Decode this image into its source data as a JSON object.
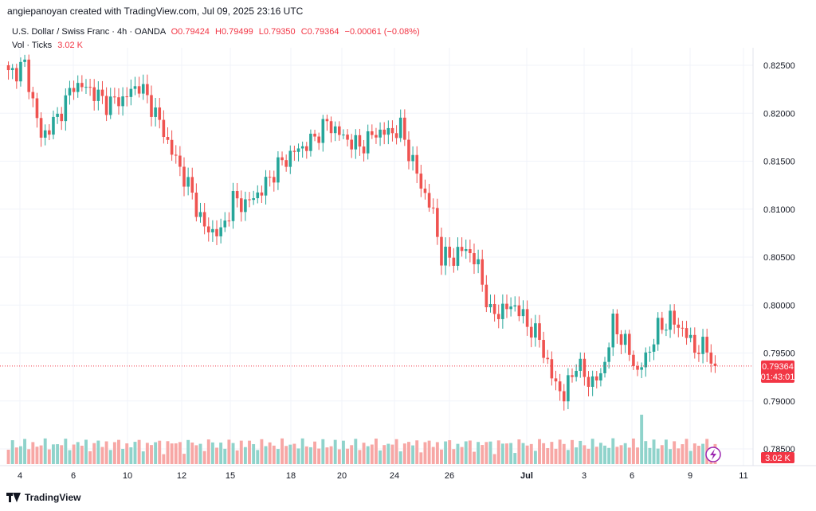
{
  "header": {
    "created_by": "angiepanoyan created with TradingView.com, Jul 09, 2025 23:16 UTC"
  },
  "legend": {
    "symbol": "U.S. Dollar / Swiss Franc · 4h · OANDA",
    "open": "O0.79424",
    "high": "H0.79499",
    "low": "L0.79350",
    "close": "C0.79364",
    "change": "−0.00061 (−0.08%)",
    "vol_label": "Vol · Ticks",
    "vol_value": "3.02 K"
  },
  "price_label": {
    "value": "0.79364",
    "countdown": "01:43:01"
  },
  "volume_label": "3.02 K",
  "footer": {
    "brand": "TradingView"
  },
  "colors": {
    "up": "#26a69a",
    "down": "#ef5350",
    "up_vol": "#8fd3cb",
    "down_vol": "#f7a7a5",
    "last_price": "#f23645"
  },
  "chart_data": {
    "type": "candlestick",
    "y_axis": {
      "min": 0.785,
      "max": 0.825,
      "ticks": [
        "0.82500",
        "0.82000",
        "0.81500",
        "0.81000",
        "0.80500",
        "0.80000",
        "0.79500",
        "0.79000",
        "0.78500"
      ]
    },
    "x_axis": {
      "ticks": [
        "4",
        "6",
        "10",
        "12",
        "15",
        "18",
        "20",
        "24",
        "26",
        "Jul",
        "3",
        "6",
        "9",
        "11"
      ]
    },
    "grid": true,
    "last_price": 0.79364,
    "anchors": [
      [
        0,
        0.824
      ],
      [
        4,
        0.825
      ],
      [
        8,
        0.8175
      ],
      [
        12,
        0.8195
      ],
      [
        16,
        0.823
      ],
      [
        20,
        0.8225
      ],
      [
        24,
        0.821
      ],
      [
        28,
        0.8215
      ],
      [
        32,
        0.823
      ],
      [
        36,
        0.82
      ],
      [
        40,
        0.816
      ],
      [
        44,
        0.8125
      ],
      [
        48,
        0.808
      ],
      [
        52,
        0.8075
      ],
      [
        55,
        0.811
      ],
      [
        58,
        0.8105
      ],
      [
        62,
        0.812
      ],
      [
        66,
        0.8145
      ],
      [
        70,
        0.816
      ],
      [
        74,
        0.817
      ],
      [
        78,
        0.819
      ],
      [
        82,
        0.8175
      ],
      [
        86,
        0.8165
      ],
      [
        90,
        0.818
      ],
      [
        94,
        0.818
      ],
      [
        96,
        0.8185
      ],
      [
        98,
        0.816
      ],
      [
        101,
        0.8125
      ],
      [
        104,
        0.8095
      ],
      [
        106,
        0.805
      ],
      [
        109,
        0.805
      ],
      [
        112,
        0.806
      ],
      [
        115,
        0.804
      ],
      [
        118,
        0.799
      ],
      [
        121,
        0.7995
      ],
      [
        124,
        0.8
      ],
      [
        127,
        0.798
      ],
      [
        130,
        0.7965
      ],
      [
        133,
        0.7925
      ],
      [
        136,
        0.7905
      ],
      [
        139,
        0.794
      ],
      [
        142,
        0.792
      ],
      [
        145,
        0.7925
      ],
      [
        148,
        0.798
      ],
      [
        151,
        0.796
      ],
      [
        154,
        0.793
      ],
      [
        156,
        0.7945
      ],
      [
        159,
        0.7975
      ],
      [
        162,
        0.7985
      ],
      [
        165,
        0.7975
      ],
      [
        168,
        0.7955
      ],
      [
        171,
        0.7955
      ],
      [
        173,
        0.7936
      ]
    ],
    "volume": {
      "max": 10
    }
  }
}
